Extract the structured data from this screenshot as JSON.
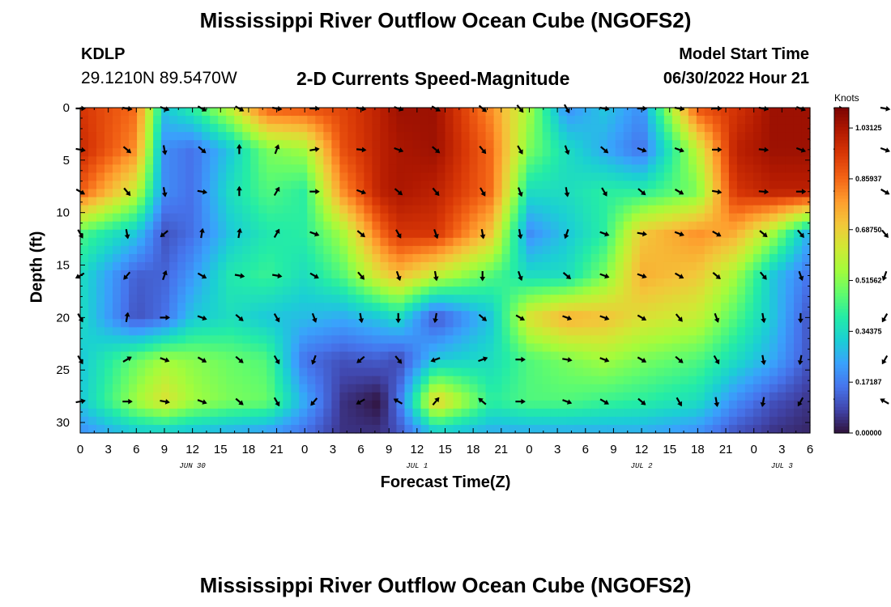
{
  "header": {
    "title": "Mississippi River Outflow Ocean Cube (NGOFS2)",
    "station_id": "KDLP",
    "station_coords": "29.1210N  89.5470W",
    "plot_title": "2-D Currents Speed-Magnitude",
    "model_start_label": "Model Start Time",
    "model_start_value": "06/30/2022 Hour 21"
  },
  "footer": {
    "repeated_title": "Mississippi River Outflow Ocean Cube (NGOFS2)"
  },
  "chart_data": {
    "type": "heatmap",
    "title": "2-D Currents Speed-Magnitude",
    "xlabel": "Forecast Time(Z)",
    "ylabel": "Depth (ft)",
    "x_tick_labels": [
      "0",
      "3",
      "6",
      "9",
      "12",
      "15",
      "18",
      "21",
      "0",
      "3",
      "6",
      "9",
      "12",
      "15",
      "18",
      "21",
      "0",
      "3",
      "6",
      "9",
      "12",
      "15",
      "18",
      "21",
      "0",
      "3",
      "6"
    ],
    "x_date_labels": [
      {
        "label": "JUN 30",
        "tick_index": 4
      },
      {
        "label": "JUL 1",
        "tick_index": 12
      },
      {
        "label": "JUL 2",
        "tick_index": 20
      },
      {
        "label": "JUL 3",
        "tick_index": 25
      }
    ],
    "ylim": [
      0,
      31
    ],
    "y_ticks": [
      0,
      5,
      10,
      15,
      20,
      25,
      30
    ],
    "hours": [
      0,
      6,
      9,
      12,
      16,
      20,
      24,
      28,
      32,
      34,
      38,
      44,
      48,
      52,
      56,
      60,
      66,
      70,
      74,
      78
    ],
    "depths_ft": [
      0,
      4,
      8,
      12,
      16,
      20,
      24,
      28,
      31
    ],
    "speed_knots": [
      [
        0.95,
        0.85,
        0.3,
        0.4,
        0.6,
        0.88,
        0.9,
        0.92,
        1.0,
        1.05,
        1.05,
        0.8,
        0.55,
        0.2,
        0.3,
        0.2,
        0.9,
        0.95,
        1.05,
        1.05
      ],
      [
        0.98,
        0.8,
        0.2,
        0.15,
        0.3,
        0.5,
        0.55,
        0.9,
        1.0,
        1.03,
        1.05,
        0.85,
        0.5,
        0.35,
        0.25,
        0.15,
        0.6,
        1.0,
        1.05,
        1.05
      ],
      [
        0.88,
        0.6,
        0.2,
        0.15,
        0.35,
        0.45,
        0.4,
        0.8,
        1.0,
        1.03,
        1.0,
        0.85,
        0.35,
        0.35,
        0.4,
        0.4,
        0.5,
        0.95,
        1.0,
        1.0
      ],
      [
        0.45,
        0.3,
        0.1,
        0.15,
        0.3,
        0.38,
        0.4,
        0.55,
        0.85,
        0.95,
        0.95,
        0.7,
        0.2,
        0.3,
        0.4,
        0.7,
        0.8,
        0.75,
        0.55,
        0.25
      ],
      [
        0.35,
        0.12,
        0.13,
        0.22,
        0.38,
        0.42,
        0.35,
        0.45,
        0.65,
        0.72,
        0.6,
        0.45,
        0.35,
        0.35,
        0.5,
        0.75,
        0.7,
        0.55,
        0.3,
        0.15
      ],
      [
        0.35,
        0.1,
        0.15,
        0.3,
        0.35,
        0.3,
        0.28,
        0.25,
        0.3,
        0.35,
        0.1,
        0.3,
        0.65,
        0.75,
        0.72,
        0.65,
        0.6,
        0.45,
        0.3,
        0.1
      ],
      [
        0.3,
        0.48,
        0.55,
        0.52,
        0.48,
        0.45,
        0.15,
        0.1,
        0.12,
        0.08,
        0.3,
        0.35,
        0.45,
        0.5,
        0.55,
        0.5,
        0.45,
        0.35,
        0.25,
        0.1
      ],
      [
        0.3,
        0.55,
        0.65,
        0.55,
        0.5,
        0.48,
        0.25,
        0.05,
        0.0,
        0.15,
        0.7,
        0.4,
        0.45,
        0.45,
        0.42,
        0.4,
        0.35,
        0.2,
        0.1,
        0.05
      ],
      [
        0.2,
        0.3,
        0.3,
        0.28,
        0.25,
        0.22,
        0.15,
        0.05,
        0.05,
        0.1,
        0.3,
        0.25,
        0.25,
        0.25,
        0.25,
        0.25,
        0.2,
        0.1,
        0.05,
        0.03
      ]
    ],
    "vectors": {
      "hours": [
        0,
        5,
        9,
        13,
        17,
        21,
        25,
        30,
        34,
        38,
        43,
        47,
        52,
        56,
        60,
        64,
        68,
        73,
        77,
        81,
        86,
        90
      ],
      "depths_ft": [
        0,
        4,
        8,
        12,
        16,
        20,
        24,
        28
      ],
      "direction_deg": [
        [
          90,
          100,
          110,
          120,
          120,
          100,
          90,
          100,
          110,
          120,
          130,
          140,
          150,
          100,
          90,
          100,
          90,
          100,
          110,
          90,
          100,
          120
        ],
        [
          100,
          130,
          170,
          130,
          0,
          20,
          80,
          95,
          110,
          130,
          140,
          150,
          160,
          130,
          110,
          110,
          90,
          95,
          110,
          100,
          110,
          120
        ],
        [
          120,
          140,
          170,
          100,
          0,
          30,
          90,
          110,
          130,
          140,
          150,
          160,
          170,
          150,
          130,
          120,
          100,
          95,
          90,
          100,
          120,
          20
        ],
        [
          150,
          170,
          230,
          10,
          10,
          30,
          110,
          130,
          150,
          160,
          170,
          170,
          200,
          110,
          100,
          110,
          120,
          130,
          140,
          130,
          140,
          10
        ],
        [
          240,
          220,
          20,
          120,
          100,
          100,
          120,
          140,
          160,
          170,
          180,
          160,
          130,
          110,
          110,
          120,
          130,
          140,
          160,
          180,
          200,
          200
        ],
        [
          150,
          10,
          90,
          110,
          130,
          150,
          160,
          170,
          180,
          190,
          130,
          120,
          110,
          110,
          120,
          140,
          160,
          170,
          180,
          200,
          210,
          210
        ],
        [
          150,
          60,
          110,
          120,
          130,
          150,
          200,
          230,
          140,
          250,
          70,
          90,
          100,
          110,
          120,
          130,
          150,
          170,
          190,
          200,
          210,
          210
        ],
        [
          80,
          90,
          100,
          110,
          130,
          150,
          220,
          240,
          300,
          40,
          310,
          90,
          110,
          120,
          130,
          150,
          170,
          190,
          210,
          300,
          300,
          300
        ]
      ]
    },
    "colorbar": {
      "unit": "Knots",
      "min": 0.0,
      "max": 1.1,
      "tick_values": [
        0.0,
        0.171875,
        0.34375,
        0.515625,
        0.6875,
        0.859375,
        1.03125
      ],
      "tick_labels": [
        "0.00000",
        "0.17187",
        "0.34375",
        "0.51562",
        "0.68750",
        "0.85937",
        "1.03125"
      ],
      "colors": [
        "#30123b",
        "#4145ab",
        "#4675ed",
        "#39a2fc",
        "#1bcfd4",
        "#24eca6",
        "#61fc6c",
        "#a4fc3b",
        "#d1e834",
        "#f3c63a",
        "#fe9b2d",
        "#f36315",
        "#d93806",
        "#b11901",
        "#7a0403"
      ]
    }
  }
}
